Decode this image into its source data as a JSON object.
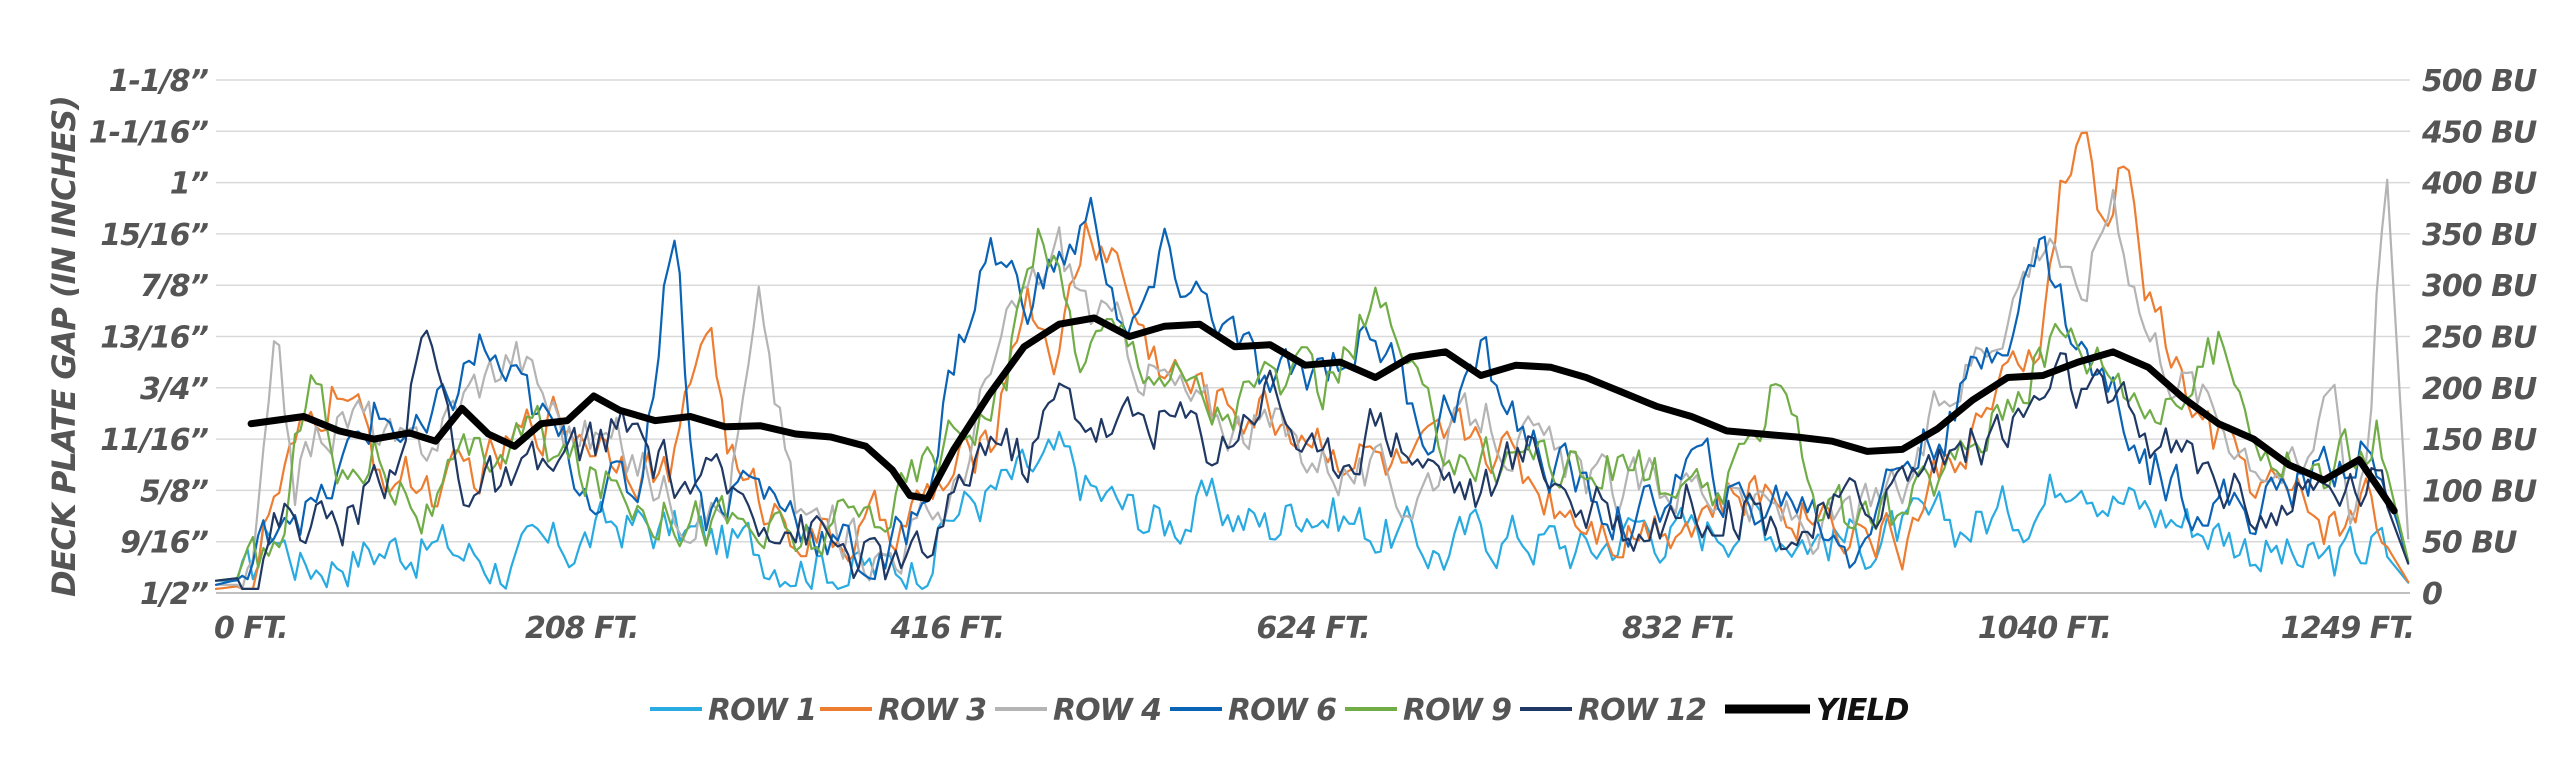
{
  "chart_data": {
    "type": "line",
    "title": "",
    "xlabel": "",
    "ylabel": "DECK PLATE GAP (IN INCHES)",
    "x_ticks": [
      "0 FT.",
      "208 FT.",
      "416 FT.",
      "624 FT.",
      "832 FT.",
      "1040 FT.",
      "1249 FT."
    ],
    "x_range_ft": [
      0,
      1249
    ],
    "y_left_ticks": [
      "1/2”",
      "9/16”",
      "5/8”",
      "11/16”",
      "3/4”",
      "13/16”",
      "7/8”",
      "15/16”",
      "1”",
      "1-1/16”",
      "1-1/8”"
    ],
    "y_left_range_in": [
      0.5,
      1.125
    ],
    "y_right_ticks": [
      "0",
      "50 BU",
      "100 BU",
      "150 BU",
      "200 BU",
      "250 BU",
      "300 BU",
      "350 BU",
      "400 BU",
      "450 BU",
      "500 BU"
    ],
    "y_right_range_bu": [
      0,
      500
    ],
    "grid": "horizontal",
    "legend_position": "bottom-center",
    "series": [
      {
        "name": "ROW 1",
        "color": "#29abe2",
        "axis": "left",
        "x": [
          0,
          20,
          30,
          50,
          80,
          110,
          140,
          170,
          200,
          230,
          260,
          290,
          320,
          350,
          380,
          400,
          420,
          440,
          460,
          480,
          500,
          520,
          540,
          560,
          580,
          600,
          620,
          650,
          680,
          700,
          720,
          750,
          780,
          810,
          840,
          870,
          900,
          930,
          960,
          990,
          1020,
          1040,
          1060,
          1080,
          1100,
          1130,
          1160,
          1190,
          1210,
          1230,
          1249
        ],
        "y": [
          0.515,
          0.515,
          0.582,
          0.535,
          0.55,
          0.56,
          0.55,
          0.535,
          0.555,
          0.585,
          0.575,
          0.56,
          0.55,
          0.535,
          0.525,
          0.54,
          0.6,
          0.62,
          0.64,
          0.66,
          0.62,
          0.6,
          0.585,
          0.605,
          0.595,
          0.58,
          0.615,
          0.585,
          0.565,
          0.55,
          0.575,
          0.57,
          0.55,
          0.585,
          0.57,
          0.6,
          0.575,
          0.565,
          0.57,
          0.58,
          0.6,
          0.615,
          0.67,
          0.62,
          0.6,
          0.585,
          0.56,
          0.53,
          0.54,
          0.56,
          0.51
        ]
      },
      {
        "name": "ROW 3",
        "color": "#ed7d31",
        "axis": "left",
        "x": [
          0,
          20,
          30,
          45,
          60,
          70,
          90,
          110,
          130,
          160,
          190,
          230,
          260,
          280,
          290,
          300,
          320,
          350,
          380,
          400,
          420,
          440,
          460,
          480,
          495,
          510,
          530,
          560,
          600,
          640,
          680,
          720,
          760,
          800,
          840,
          880,
          920,
          960,
          980,
          1000,
          1020,
          1040,
          1050,
          1065,
          1075,
          1085,
          1100,
          1130,
          1160,
          1190,
          1210,
          1225,
          1235,
          1249
        ],
        "y": [
          0.505,
          0.51,
          0.59,
          0.66,
          0.72,
          0.76,
          0.66,
          0.64,
          0.62,
          0.66,
          0.72,
          0.68,
          0.64,
          0.85,
          0.7,
          0.62,
          0.6,
          0.56,
          0.58,
          0.6,
          0.64,
          0.68,
          0.87,
          0.79,
          0.94,
          0.92,
          0.8,
          0.74,
          0.72,
          0.68,
          0.64,
          0.7,
          0.62,
          0.58,
          0.6,
          0.62,
          0.6,
          0.56,
          0.64,
          0.7,
          0.74,
          0.82,
          0.99,
          1.04,
          0.93,
          1.04,
          0.86,
          0.7,
          0.64,
          0.6,
          0.58,
          0.62,
          0.56,
          0.51
        ]
      },
      {
        "name": "ROW 4",
        "color": "#b4b4b4",
        "axis": "left",
        "x": [
          0,
          20,
          35,
          45,
          60,
          80,
          110,
          140,
          170,
          200,
          230,
          260,
          290,
          310,
          330,
          350,
          380,
          400,
          420,
          440,
          460,
          480,
          500,
          530,
          560,
          600,
          640,
          680,
          720,
          760,
          800,
          840,
          880,
          920,
          960,
          990,
          1010,
          1030,
          1045,
          1060,
          1080,
          1100,
          1130,
          1160,
          1190,
          1205,
          1215,
          1225,
          1235,
          1249
        ],
        "y": [
          0.51,
          0.51,
          0.8,
          0.64,
          0.7,
          0.72,
          0.66,
          0.74,
          0.8,
          0.7,
          0.68,
          0.62,
          0.6,
          0.85,
          0.6,
          0.58,
          0.55,
          0.58,
          0.62,
          0.76,
          0.86,
          0.92,
          0.84,
          0.78,
          0.72,
          0.7,
          0.66,
          0.62,
          0.72,
          0.66,
          0.62,
          0.64,
          0.6,
          0.58,
          0.62,
          0.76,
          0.82,
          0.9,
          0.96,
          0.84,
          1.0,
          0.82,
          0.74,
          0.68,
          0.64,
          0.8,
          0.6,
          0.7,
          1.04,
          0.53
        ]
      },
      {
        "name": "ROW 6",
        "color": "#0b63b6",
        "axis": "left",
        "x": [
          0,
          20,
          40,
          60,
          90,
          120,
          150,
          180,
          210,
          240,
          262,
          270,
          280,
          300,
          330,
          360,
          380,
          400,
          420,
          440,
          460,
          480,
          500,
          520,
          540,
          570,
          600,
          630,
          660,
          690,
          720,
          750,
          780,
          810,
          840,
          870,
          900,
          930,
          960,
          990,
          1020,
          1040,
          1060,
          1080,
          1100,
          1130,
          1160,
          1190,
          1220,
          1240,
          1249
        ],
        "y": [
          0.51,
          0.52,
          0.62,
          0.6,
          0.72,
          0.68,
          0.8,
          0.72,
          0.64,
          0.62,
          0.98,
          0.68,
          0.6,
          0.64,
          0.6,
          0.55,
          0.53,
          0.6,
          0.78,
          0.92,
          0.86,
          0.9,
          0.96,
          0.8,
          0.9,
          0.84,
          0.74,
          0.78,
          0.82,
          0.7,
          0.78,
          0.68,
          0.62,
          0.58,
          0.66,
          0.6,
          0.62,
          0.56,
          0.66,
          0.72,
          0.84,
          0.92,
          0.8,
          0.74,
          0.66,
          0.62,
          0.6,
          0.64,
          0.68,
          0.6,
          0.53
        ]
      },
      {
        "name": "ROW 9",
        "color": "#70ad47",
        "axis": "left",
        "x": [
          0,
          20,
          40,
          55,
          70,
          90,
          120,
          150,
          180,
          210,
          240,
          270,
          300,
          330,
          360,
          390,
          420,
          450,
          470,
          490,
          510,
          540,
          570,
          600,
          630,
          660,
          690,
          720,
          750,
          780,
          810,
          840,
          870,
          890,
          910,
          930,
          960,
          990,
          1020,
          1050,
          1080,
          1110,
          1140,
          1170,
          1200,
          1230,
          1249
        ],
        "y": [
          0.515,
          0.52,
          0.58,
          0.82,
          0.62,
          0.68,
          0.6,
          0.66,
          0.7,
          0.64,
          0.62,
          0.6,
          0.58,
          0.56,
          0.58,
          0.62,
          0.7,
          0.76,
          0.96,
          0.8,
          0.82,
          0.78,
          0.72,
          0.76,
          0.74,
          0.86,
          0.7,
          0.66,
          0.68,
          0.64,
          0.66,
          0.6,
          0.64,
          0.8,
          0.62,
          0.58,
          0.6,
          0.66,
          0.74,
          0.82,
          0.78,
          0.72,
          0.8,
          0.68,
          0.64,
          0.7,
          0.53
        ]
      },
      {
        "name": "ROW 12",
        "color": "#203864",
        "axis": "left",
        "x": [
          0,
          20,
          40,
          70,
          100,
          120,
          140,
          170,
          200,
          230,
          260,
          290,
          320,
          350,
          380,
          400,
          420,
          440,
          460,
          480,
          510,
          540,
          570,
          600,
          630,
          660,
          690,
          720,
          750,
          780,
          810,
          840,
          870,
          900,
          930,
          960,
          990,
          1020,
          1050,
          1080,
          1110,
          1140,
          1170,
          1200,
          1230,
          1249
        ],
        "y": [
          0.515,
          0.52,
          0.6,
          0.58,
          0.66,
          0.82,
          0.64,
          0.62,
          0.66,
          0.7,
          0.64,
          0.62,
          0.6,
          0.56,
          0.53,
          0.535,
          0.6,
          0.7,
          0.66,
          0.74,
          0.7,
          0.72,
          0.68,
          0.76,
          0.64,
          0.72,
          0.66,
          0.62,
          0.68,
          0.6,
          0.58,
          0.62,
          0.6,
          0.58,
          0.6,
          0.64,
          0.68,
          0.7,
          0.76,
          0.72,
          0.68,
          0.64,
          0.6,
          0.62,
          0.64,
          0.53
        ]
      },
      {
        "name": "YIELD",
        "color": "#000000",
        "axis": "right",
        "x": [
          20,
          50,
          70,
          90,
          110,
          125,
          140,
          155,
          170,
          185,
          200,
          215,
          230,
          250,
          270,
          290,
          310,
          330,
          350,
          370,
          385,
          395,
          405,
          420,
          440,
          460,
          480,
          500,
          520,
          540,
          560,
          580,
          600,
          620,
          640,
          660,
          680,
          700,
          720,
          740,
          760,
          780,
          800,
          820,
          840,
          860,
          880,
          900,
          920,
          940,
          960,
          980,
          1000,
          1020,
          1040,
          1060,
          1080,
          1100,
          1120,
          1140,
          1160,
          1180,
          1200,
          1220,
          1240
        ],
        "y": [
          165,
          172,
          158,
          150,
          156,
          148,
          180,
          155,
          143,
          165,
          168,
          192,
          178,
          168,
          172,
          162,
          163,
          155,
          152,
          143,
          120,
          95,
          92,
          140,
          193,
          240,
          262,
          268,
          250,
          260,
          262,
          240,
          242,
          222,
          225,
          210,
          230,
          235,
          212,
          222,
          220,
          210,
          196,
          182,
          172,
          158,
          155,
          152,
          148,
          138,
          140,
          160,
          188,
          210,
          212,
          225,
          235,
          220,
          190,
          165,
          150,
          125,
          110,
          130,
          80
        ]
      }
    ]
  }
}
